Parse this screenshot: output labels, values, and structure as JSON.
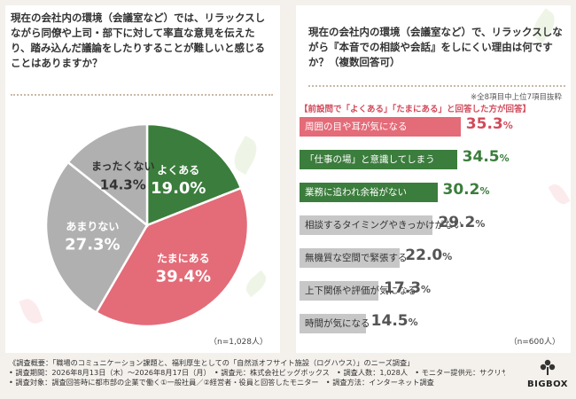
{
  "left": {
    "question": "現在の会社内の環境（会議室など）では、リラックスしながら同僚や上司・部下に対して率直な意見を伝えたり、踏み込んだ議論をしたりすることが難しいと感じることはありますか？",
    "n_label": "（n=1,028人）"
  },
  "right": {
    "question": "現在の会社内の環境（会議室など）で、リラックスしながら『本音での相談や会話』をしにくい理由は何ですか？（複数回答可）",
    "note": "※全8項目中上位7項目抜粋",
    "subheading": "【前設問で「よくある」「たまにある」と回答した方が回答】",
    "n_label": "（n=600人）"
  },
  "footer": {
    "lines": [
      "《調査概要：「職場のコミュニケーション課題と、福利厚生としての「自然派オフサイト施設（ログハウス）」のニーズ調査」",
      "• 調査期間：2026年8月13日（木）～2026年8月17日（月）　• 調査元：株式会社ビッグボックス　• 調査人数：1,028人　• モニター提供元：サクリサ",
      "• 調査対象：調査回答時に都市部の企業で働く①一般社員／②経営者・役員と回答したモニター　• 調査方法：インターネット調査"
    ]
  },
  "logo": {
    "text": "BIGBOX"
  },
  "colors": {
    "green": "#3b7d3c",
    "pink": "#e46b78",
    "gray": "#b0b0b0",
    "bar_gray": "#c7c7c7",
    "accent_red": "#d24a5a"
  },
  "chart_data": [
    {
      "type": "pie",
      "start": "12 o'clock",
      "direction": "clockwise",
      "labels": [
        "よくある",
        "たまにある",
        "あまりない",
        "まったくない"
      ],
      "values": [
        19.0,
        39.4,
        27.3,
        14.3
      ],
      "value_labels": [
        "19.0%",
        "39.4%",
        "27.3%",
        "14.3%"
      ],
      "colors": [
        "#3b7d3c",
        "#e46b78",
        "#b0b0b0",
        "#b0b0b0"
      ],
      "label_colors": [
        "#ffffff",
        "#ffffff",
        "#ffffff",
        "#333333"
      ],
      "unit": "%"
    },
    {
      "type": "bar",
      "orientation": "horizontal",
      "categories": [
        "周囲の目や耳が気になる",
        "「仕事の場」と意識してしまう",
        "業務に追われ余裕がない",
        "相談するタイミングやきっかけがない",
        "無機質な空間で緊張する",
        "上下関係や評価が気になる",
        "時間が気になる"
      ],
      "values": [
        35.3,
        34.5,
        30.2,
        29.2,
        22.0,
        17.3,
        14.5
      ],
      "value_labels": [
        "35.3",
        "34.5",
        "30.2",
        "29.2",
        "22.0",
        "17.3",
        "14.5"
      ],
      "unit": "%",
      "colors": [
        "#e46b78",
        "#3b7d3c",
        "#3b7d3c",
        "#c7c7c7",
        "#c7c7c7",
        "#c7c7c7",
        "#c7c7c7"
      ],
      "value_colors": [
        "#d24a5a",
        "#3b7d3c",
        "#3b7d3c",
        "#555555",
        "#555555",
        "#555555",
        "#555555"
      ],
      "label_colors": [
        "#ffffff",
        "#ffffff",
        "#ffffff",
        "#333333",
        "#333333",
        "#333333",
        "#333333"
      ],
      "xlim": [
        0,
        40
      ]
    }
  ]
}
